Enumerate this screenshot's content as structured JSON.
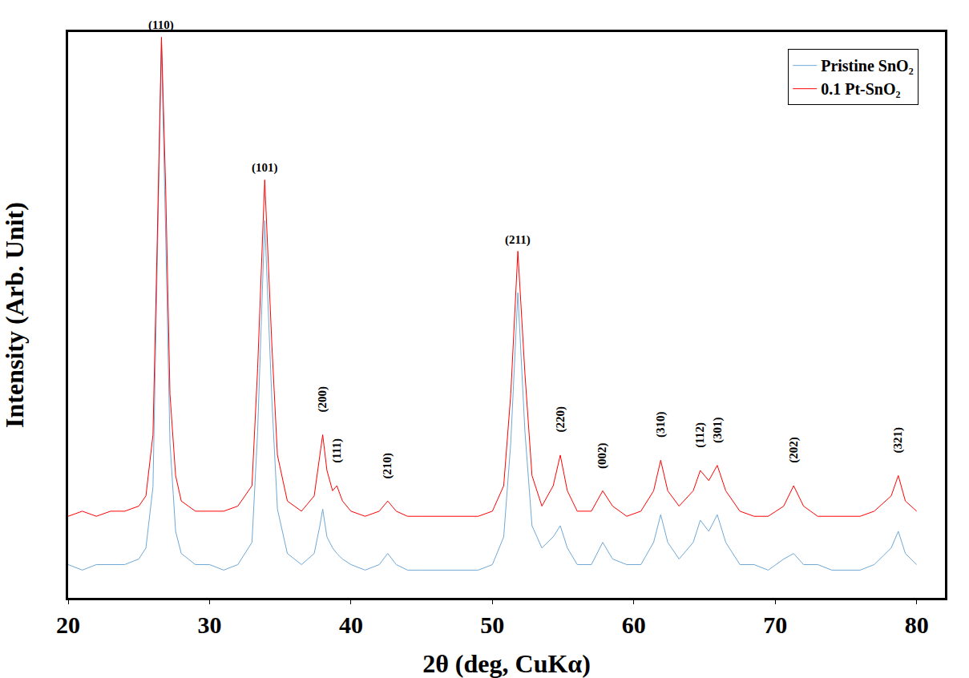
{
  "chart_data": {
    "type": "line",
    "x_label": "2θ (deg, CuKα)",
    "y_label": "Intensity (Arb. Unit)",
    "x": [
      20,
      21,
      22,
      23,
      24,
      25,
      25.5,
      26,
      26.3,
      26.6,
      26.9,
      27.2,
      27.6,
      28,
      29,
      30,
      31,
      32,
      33,
      33.4,
      33.9,
      34.4,
      34.8,
      35.5,
      36.5,
      37.4,
      37.8,
      38.0,
      38.3,
      38.7,
      39.0,
      39.4,
      40,
      41,
      42,
      42.6,
      43.2,
      44,
      45,
      46,
      47,
      48,
      49,
      50,
      50.8,
      51.3,
      51.8,
      52.3,
      52.8,
      53.5,
      54.3,
      54.8,
      55.3,
      56,
      57,
      57.8,
      58.5,
      59.5,
      60.5,
      61.4,
      61.9,
      62.4,
      63.2,
      64.2,
      64.7,
      65.3,
      65.9,
      66.5,
      67.5,
      68.5,
      69.5,
      70.6,
      71.3,
      72,
      73,
      74,
      75,
      76,
      77,
      78.2,
      78.7,
      79.2,
      80
    ],
    "series": [
      {
        "name": "Pristine SnO₂",
        "color": "#6fa8d6",
        "axis": "y",
        "values": [
          6,
          5,
          6,
          6,
          6,
          7,
          9,
          20,
          58,
          100,
          65,
          28,
          12,
          8,
          6,
          6,
          5,
          6,
          10,
          30,
          68,
          36,
          16,
          8,
          6,
          8,
          13,
          16,
          11,
          9,
          8,
          7,
          6,
          5,
          6,
          8,
          6,
          5,
          5,
          5,
          5,
          5,
          5,
          6,
          11,
          28,
          55,
          30,
          13,
          9,
          11,
          13,
          9,
          6,
          6,
          10,
          7,
          6,
          6,
          10,
          15,
          10,
          7,
          10,
          14,
          12,
          15,
          10,
          6,
          6,
          5,
          7,
          8,
          6,
          6,
          5,
          5,
          5,
          6,
          9,
          12,
          8,
          6
        ]
      },
      {
        "name": "0.1 Pt-SnO₂",
        "color": "#ff0000",
        "axis": "y2",
        "values": [
          6,
          7,
          6,
          7,
          7,
          8,
          10,
          22,
          60,
          100,
          70,
          30,
          14,
          9,
          7,
          7,
          7,
          8,
          12,
          35,
          72,
          40,
          18,
          9,
          7,
          10,
          18,
          22,
          15,
          11,
          12,
          9,
          7,
          6,
          7,
          9,
          7,
          6,
          6,
          6,
          6,
          6,
          6,
          7,
          12,
          30,
          58,
          34,
          14,
          8,
          12,
          18,
          11,
          7,
          7,
          11,
          8,
          6,
          7,
          11,
          17,
          11,
          8,
          11,
          15,
          13,
          16,
          11,
          7,
          6,
          6,
          8,
          12,
          8,
          6,
          6,
          6,
          6,
          7,
          10,
          14,
          9,
          7
        ]
      }
    ],
    "xlim": [
      20,
      82
    ],
    "xticks": [
      20,
      30,
      40,
      50,
      60,
      70,
      80
    ],
    "ylim": [
      0,
      102
    ],
    "y2lim": [
      -10,
      101
    ],
    "tick_labels": "x",
    "grid": false,
    "legend": "top right",
    "annotations": [
      {
        "text": "(110)",
        "x": 26.6,
        "y": 100
      },
      {
        "text": "(101)",
        "x": 33.9,
        "y": 72
      },
      {
        "text": "(200)",
        "x": 38.0,
        "y": 22
      },
      {
        "text": "(111)",
        "x": 39.0,
        "y": 12
      },
      {
        "text": "(210)",
        "x": 42.6,
        "y": 9
      },
      {
        "text": "(211)",
        "x": 51.8,
        "y": 58
      },
      {
        "text": "(220)",
        "x": 54.8,
        "y": 18
      },
      {
        "text": "(002)",
        "x": 57.8,
        "y": 11
      },
      {
        "text": "(310)",
        "x": 61.9,
        "y": 17
      },
      {
        "text": "(112)",
        "x": 64.7,
        "y": 15
      },
      {
        "text": "(301)",
        "x": 65.9,
        "y": 16
      },
      {
        "text": "(202)",
        "x": 71.3,
        "y": 12
      },
      {
        "text": "(321)",
        "x": 78.7,
        "y": 14
      }
    ]
  }
}
